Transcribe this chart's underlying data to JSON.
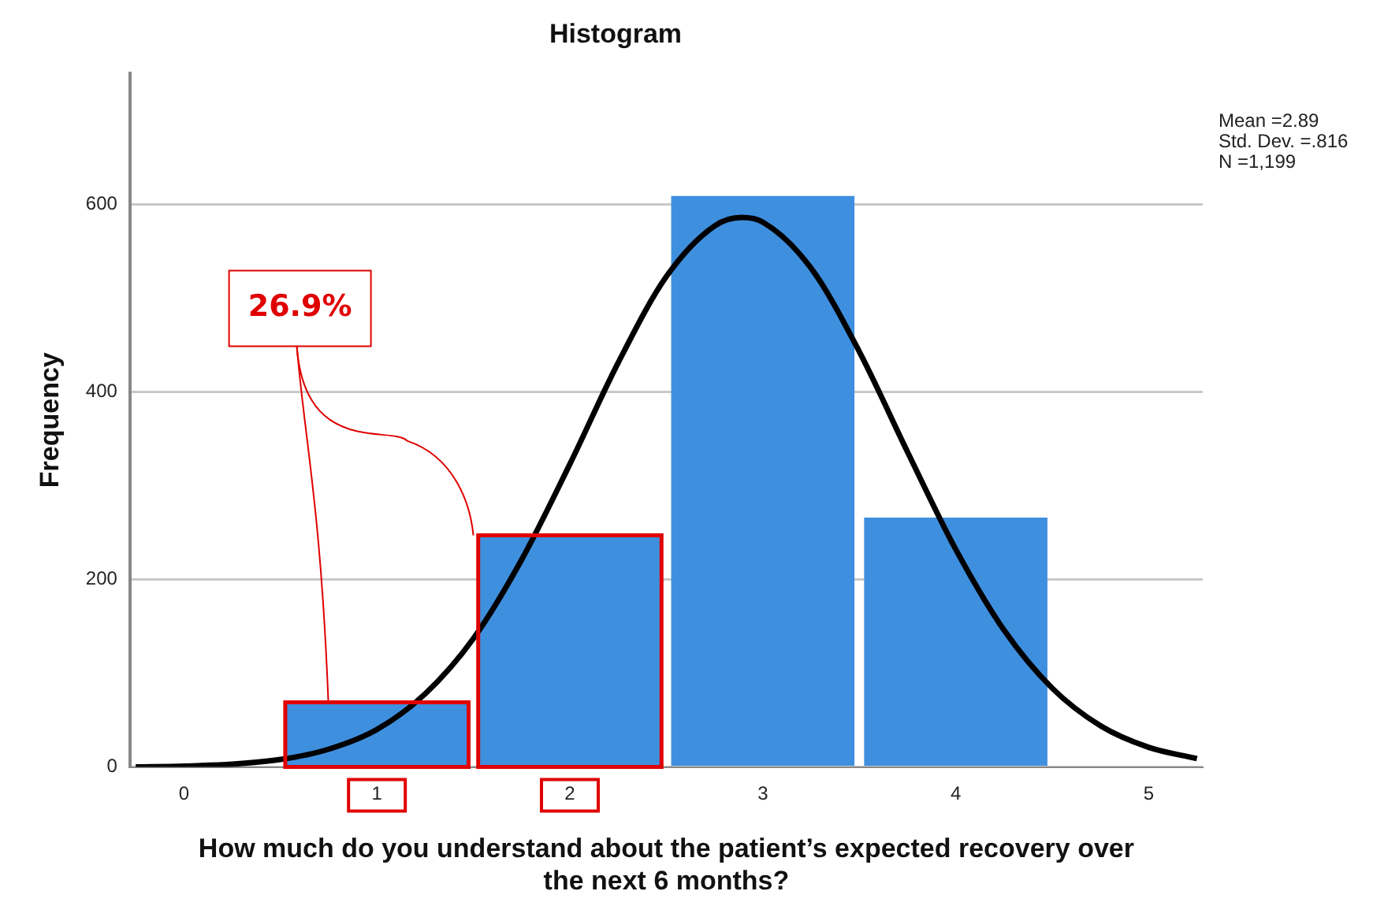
{
  "chart_data": {
    "type": "histogram",
    "title": "Histogram",
    "xlabel": "How much do you understand about the patient’s expected recovery over the next 6 months?",
    "ylabel": "Frequency",
    "bins": [
      0.5,
      1.5,
      2.5,
      3.5,
      4.5
    ],
    "values": [
      69,
      247,
      609,
      266
    ],
    "color": "#3f8fdf",
    "series": [
      {
        "type": "line",
        "color": "#000000",
        "x": [
          -0.25,
          0,
          0.25,
          0.5,
          0.75,
          1,
          1.25,
          1.5,
          1.75,
          2,
          2.25,
          2.5,
          2.75,
          2.89,
          3,
          3.25,
          3.5,
          3.75,
          4,
          4.25,
          4.5,
          4.75,
          5,
          5.25
        ],
        "values": [
          0,
          1,
          3,
          8,
          19,
          40,
          78,
          137,
          221,
          323,
          431,
          523,
          577,
          586,
          581,
          532,
          443,
          336,
          232,
          146,
          84,
          44,
          21,
          9
        ]
      }
    ],
    "xlim": [
      -0.28,
      5.28
    ],
    "xticks": [
      0,
      1,
      2,
      3,
      4,
      5
    ],
    "ylim": [
      0,
      740
    ],
    "yticks": [
      0,
      200,
      400,
      600
    ],
    "grid": "y",
    "legend": false,
    "annotations": [
      {
        "text": "26.9%",
        "x": 1.5,
        "y": 247
      },
      "Mean =2.89",
      "Std. Dev. =.816",
      "N =1,199"
    ]
  }
}
